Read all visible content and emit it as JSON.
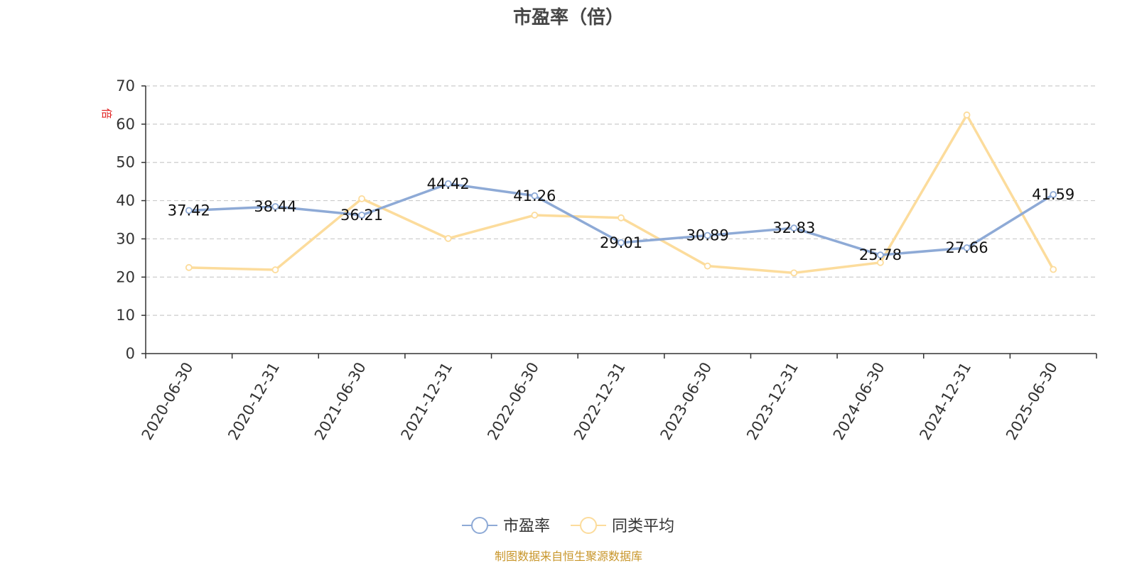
{
  "chart_data": {
    "type": "line",
    "title": "市盈率（倍）",
    "ylabel": "倍",
    "ylim": [
      0,
      70
    ],
    "yticks": [
      0,
      10,
      20,
      30,
      40,
      50,
      60,
      70
    ],
    "grid": true,
    "legend_position": "bottom-center",
    "categories": [
      "2020-06-30",
      "2020-12-31",
      "2021-06-30",
      "2021-12-31",
      "2022-06-30",
      "2022-12-31",
      "2023-06-30",
      "2023-12-31",
      "2024-06-30",
      "2024-12-31",
      "2025-06-30"
    ],
    "series": [
      {
        "name": "市盈率",
        "color": "#8eaad6",
        "values": [
          37.42,
          38.44,
          36.21,
          44.42,
          41.26,
          29.01,
          30.89,
          32.83,
          25.78,
          27.66,
          41.59
        ],
        "labels": [
          "37.42",
          "38.44",
          "36.21",
          "44.42",
          "41.26",
          "29.01",
          "30.89",
          "32.83",
          "25.78",
          "27.66",
          "41.59"
        ]
      },
      {
        "name": "同类平均",
        "color": "#fcdc9c",
        "values": [
          22.5,
          21.9,
          40.5,
          30.1,
          36.2,
          35.5,
          22.9,
          21.1,
          23.8,
          62.4,
          22.0
        ]
      }
    ],
    "source": "制图数据来自恒生聚源数据库",
    "colors": {
      "unit_label": "#e02020",
      "source": "#c8962a",
      "axis": "#333333",
      "grid": "#cccccc"
    }
  }
}
